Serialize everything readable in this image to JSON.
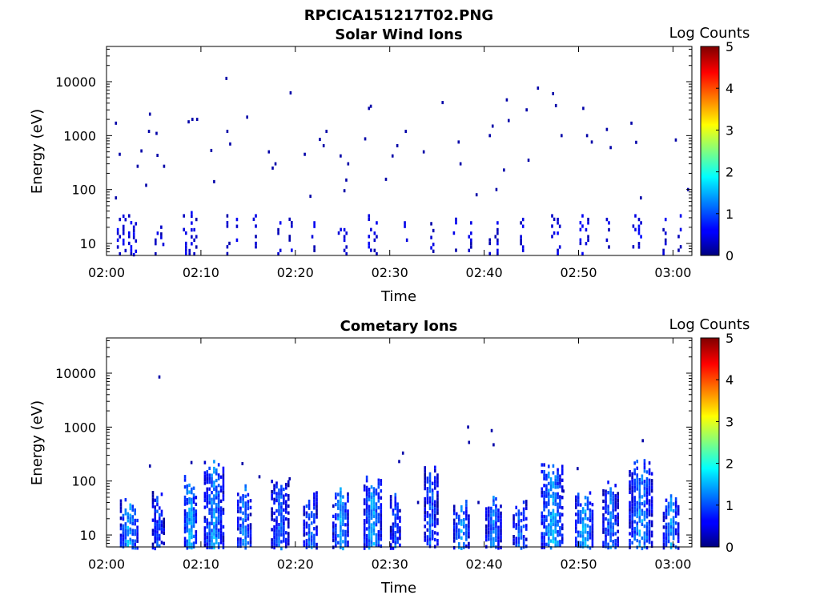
{
  "figure_title": "RPCICA151217T02.PNG",
  "chart_data": [
    {
      "type": "heatmap",
      "title": "Solar Wind Ions",
      "xlabel": "Time",
      "ylabel": "Energy (eV)",
      "x_tick_labels": [
        "02:00",
        "02:10",
        "02:20",
        "02:30",
        "02:40",
        "02:50",
        "03:00"
      ],
      "x_tick_minutes": [
        0,
        10,
        20,
        30,
        40,
        50,
        60
      ],
      "xlim_minutes": [
        0,
        62
      ],
      "y_scale": "log",
      "y_tick_labels": [
        "10",
        "100",
        "1000",
        "10000"
      ],
      "y_tick_values": [
        10,
        100,
        1000,
        10000
      ],
      "ylim": [
        6,
        45000
      ],
      "colorbar": {
        "label": "Log Counts",
        "ticks": [
          "0",
          "1",
          "2",
          "3",
          "4",
          "5"
        ],
        "range": [
          0,
          5
        ],
        "colormap": "jet"
      },
      "band_low_energy": {
        "ymin": 6,
        "ymax": 45,
        "dominant_level": 0.2
      },
      "columns": [
        {
          "t": 1.2,
          "top": 30,
          "level": 0.3
        },
        {
          "t": 1.8,
          "top": 40,
          "level": 0.3
        },
        {
          "t": 2.4,
          "top": 35,
          "level": 0.3
        },
        {
          "t": 2.9,
          "top": 45,
          "level": 0.3
        },
        {
          "t": 5.2,
          "top": 30,
          "level": 0.2
        },
        {
          "t": 5.8,
          "top": 25,
          "level": 0.2
        },
        {
          "t": 8.2,
          "top": 35,
          "level": 0.3
        },
        {
          "t": 8.8,
          "top": 40,
          "level": 0.3
        },
        {
          "t": 9.3,
          "top": 30,
          "level": 0.2
        },
        {
          "t": 12.8,
          "top": 35,
          "level": 0.2
        },
        {
          "t": 13.6,
          "top": 30,
          "level": 0.2
        },
        {
          "t": 15.6,
          "top": 35,
          "level": 0.2
        },
        {
          "t": 18.2,
          "top": 30,
          "level": 0.2
        },
        {
          "t": 19.4,
          "top": 35,
          "level": 0.2
        },
        {
          "t": 21.8,
          "top": 30,
          "level": 0.2
        },
        {
          "t": 24.6,
          "top": 35,
          "level": 0.3
        },
        {
          "t": 25.2,
          "top": 30,
          "level": 0.3
        },
        {
          "t": 27.8,
          "top": 35,
          "level": 0.3
        },
        {
          "t": 28.4,
          "top": 30,
          "level": 0.2
        },
        {
          "t": 31.6,
          "top": 30,
          "level": 0.2
        },
        {
          "t": 34.4,
          "top": 25,
          "level": 0.2
        },
        {
          "t": 36.8,
          "top": 35,
          "level": 0.2
        },
        {
          "t": 38.4,
          "top": 30,
          "level": 0.2
        },
        {
          "t": 40.6,
          "top": 35,
          "level": 0.2
        },
        {
          "t": 41.2,
          "top": 30,
          "level": 0.2
        },
        {
          "t": 43.9,
          "top": 30,
          "level": 0.2
        },
        {
          "t": 47.2,
          "top": 35,
          "level": 0.3
        },
        {
          "t": 47.8,
          "top": 30,
          "level": 0.3
        },
        {
          "t": 50.2,
          "top": 35,
          "level": 0.3
        },
        {
          "t": 50.8,
          "top": 30,
          "level": 0.2
        },
        {
          "t": 53.0,
          "top": 30,
          "level": 0.2
        },
        {
          "t": 55.8,
          "top": 35,
          "level": 0.3
        },
        {
          "t": 56.4,
          "top": 30,
          "level": 0.3
        },
        {
          "t": 59.0,
          "top": 30,
          "level": 0.2
        },
        {
          "t": 60.6,
          "top": 35,
          "level": 0.2
        }
      ],
      "points": [
        {
          "t": 1.0,
          "e": 1700
        },
        {
          "t": 1.4,
          "e": 450
        },
        {
          "t": 1.0,
          "e": 70
        },
        {
          "t": 3.3,
          "e": 270
        },
        {
          "t": 3.7,
          "e": 520
        },
        {
          "t": 4.2,
          "e": 120
        },
        {
          "t": 4.5,
          "e": 1200
        },
        {
          "t": 4.6,
          "e": 2500
        },
        {
          "t": 5.3,
          "e": 1100
        },
        {
          "t": 5.4,
          "e": 430
        },
        {
          "t": 6.1,
          "e": 270
        },
        {
          "t": 8.7,
          "e": 1800
        },
        {
          "t": 9.1,
          "e": 2000
        },
        {
          "t": 9.6,
          "e": 2000
        },
        {
          "t": 11.1,
          "e": 530
        },
        {
          "t": 11.4,
          "e": 140
        },
        {
          "t": 12.7,
          "e": 11500
        },
        {
          "t": 12.8,
          "e": 1200
        },
        {
          "t": 13.1,
          "e": 700
        },
        {
          "t": 14.9,
          "e": 2200
        },
        {
          "t": 17.2,
          "e": 500
        },
        {
          "t": 17.6,
          "e": 250
        },
        {
          "t": 17.9,
          "e": 300
        },
        {
          "t": 19.5,
          "e": 6200
        },
        {
          "t": 21.0,
          "e": 450
        },
        {
          "t": 21.6,
          "e": 75
        },
        {
          "t": 22.6,
          "e": 850
        },
        {
          "t": 23.0,
          "e": 650
        },
        {
          "t": 23.3,
          "e": 1200
        },
        {
          "t": 24.8,
          "e": 420
        },
        {
          "t": 25.2,
          "e": 95
        },
        {
          "t": 25.6,
          "e": 300
        },
        {
          "t": 25.4,
          "e": 150
        },
        {
          "t": 27.4,
          "e": 870
        },
        {
          "t": 27.8,
          "e": 3200
        },
        {
          "t": 28.0,
          "e": 3500
        },
        {
          "t": 29.6,
          "e": 155
        },
        {
          "t": 30.3,
          "e": 420
        },
        {
          "t": 30.8,
          "e": 650
        },
        {
          "t": 31.7,
          "e": 1200
        },
        {
          "t": 33.6,
          "e": 500
        },
        {
          "t": 35.6,
          "e": 4100
        },
        {
          "t": 37.3,
          "e": 760
        },
        {
          "t": 37.5,
          "e": 300
        },
        {
          "t": 39.2,
          "e": 80
        },
        {
          "t": 40.6,
          "e": 1000
        },
        {
          "t": 40.9,
          "e": 1500
        },
        {
          "t": 41.3,
          "e": 100
        },
        {
          "t": 42.1,
          "e": 230
        },
        {
          "t": 42.4,
          "e": 4600
        },
        {
          "t": 42.6,
          "e": 1900
        },
        {
          "t": 44.5,
          "e": 3000
        },
        {
          "t": 44.7,
          "e": 350
        },
        {
          "t": 45.7,
          "e": 7600
        },
        {
          "t": 47.3,
          "e": 6000
        },
        {
          "t": 47.6,
          "e": 3600
        },
        {
          "t": 48.2,
          "e": 1000
        },
        {
          "t": 50.5,
          "e": 3200
        },
        {
          "t": 50.9,
          "e": 1000
        },
        {
          "t": 51.4,
          "e": 760
        },
        {
          "t": 53.0,
          "e": 1300
        },
        {
          "t": 53.4,
          "e": 600
        },
        {
          "t": 55.6,
          "e": 1700
        },
        {
          "t": 56.1,
          "e": 750
        },
        {
          "t": 56.6,
          "e": 70
        },
        {
          "t": 60.3,
          "e": 830
        },
        {
          "t": 61.6,
          "e": 100
        }
      ]
    },
    {
      "type": "heatmap",
      "title": "Cometary Ions",
      "xlabel": "Time",
      "ylabel": "Energy (eV)",
      "x_tick_labels": [
        "02:00",
        "02:10",
        "02:20",
        "02:30",
        "02:40",
        "02:50",
        "03:00"
      ],
      "x_tick_minutes": [
        0,
        10,
        20,
        30,
        40,
        50,
        60
      ],
      "xlim_minutes": [
        0,
        62
      ],
      "y_scale": "log",
      "y_tick_labels": [
        "10",
        "100",
        "1000",
        "10000"
      ],
      "y_tick_values": [
        10,
        100,
        1000,
        10000
      ],
      "ylim": [
        6,
        45000
      ],
      "colorbar": {
        "label": "Log Counts",
        "ticks": [
          "0",
          "1",
          "2",
          "3",
          "4",
          "5"
        ],
        "range": [
          0,
          5
        ],
        "colormap": "jet"
      },
      "bursts": [
        {
          "t": 2.4,
          "width": 2.0,
          "top": 45,
          "peak": 1.9
        },
        {
          "t": 5.5,
          "width": 1.4,
          "top": 60,
          "peak": 1.4
        },
        {
          "t": 8.9,
          "width": 1.4,
          "top": 120,
          "peak": 2.0
        },
        {
          "t": 11.4,
          "width": 2.2,
          "top": 250,
          "peak": 1.8
        },
        {
          "t": 14.6,
          "width": 1.6,
          "top": 80,
          "peak": 1.7
        },
        {
          "t": 18.4,
          "width": 2.0,
          "top": 100,
          "peak": 1.5
        },
        {
          "t": 21.6,
          "width": 1.6,
          "top": 60,
          "peak": 1.6
        },
        {
          "t": 24.8,
          "width": 1.8,
          "top": 80,
          "peak": 1.8
        },
        {
          "t": 28.2,
          "width": 2.0,
          "top": 140,
          "peak": 1.9
        },
        {
          "t": 30.6,
          "width": 1.2,
          "top": 60,
          "peak": 1.4
        },
        {
          "t": 34.4,
          "width": 1.6,
          "top": 200,
          "peak": 1.5
        },
        {
          "t": 37.6,
          "width": 1.8,
          "top": 45,
          "peak": 1.8
        },
        {
          "t": 41.0,
          "width": 1.8,
          "top": 60,
          "peak": 1.6
        },
        {
          "t": 43.8,
          "width": 1.6,
          "top": 45,
          "peak": 1.6
        },
        {
          "t": 47.2,
          "width": 2.4,
          "top": 200,
          "peak": 2.0
        },
        {
          "t": 50.6,
          "width": 2.0,
          "top": 60,
          "peak": 1.9
        },
        {
          "t": 53.4,
          "width": 1.8,
          "top": 100,
          "peak": 1.6
        },
        {
          "t": 56.6,
          "width": 2.6,
          "top": 250,
          "peak": 1.8
        },
        {
          "t": 59.8,
          "width": 1.8,
          "top": 60,
          "peak": 1.7
        }
      ],
      "points": [
        {
          "t": 5.6,
          "e": 8500
        },
        {
          "t": 4.6,
          "e": 190
        },
        {
          "t": 9.0,
          "e": 220
        },
        {
          "t": 14.4,
          "e": 210
        },
        {
          "t": 16.2,
          "e": 120
        },
        {
          "t": 19.4,
          "e": 110
        },
        {
          "t": 31.0,
          "e": 230
        },
        {
          "t": 31.4,
          "e": 330
        },
        {
          "t": 38.3,
          "e": 1000
        },
        {
          "t": 38.4,
          "e": 520
        },
        {
          "t": 40.8,
          "e": 860
        },
        {
          "t": 41.0,
          "e": 470
        },
        {
          "t": 39.4,
          "e": 40
        },
        {
          "t": 33.0,
          "e": 40
        },
        {
          "t": 49.9,
          "e": 170
        },
        {
          "t": 48.4,
          "e": 65
        },
        {
          "t": 56.8,
          "e": 560
        }
      ]
    }
  ]
}
